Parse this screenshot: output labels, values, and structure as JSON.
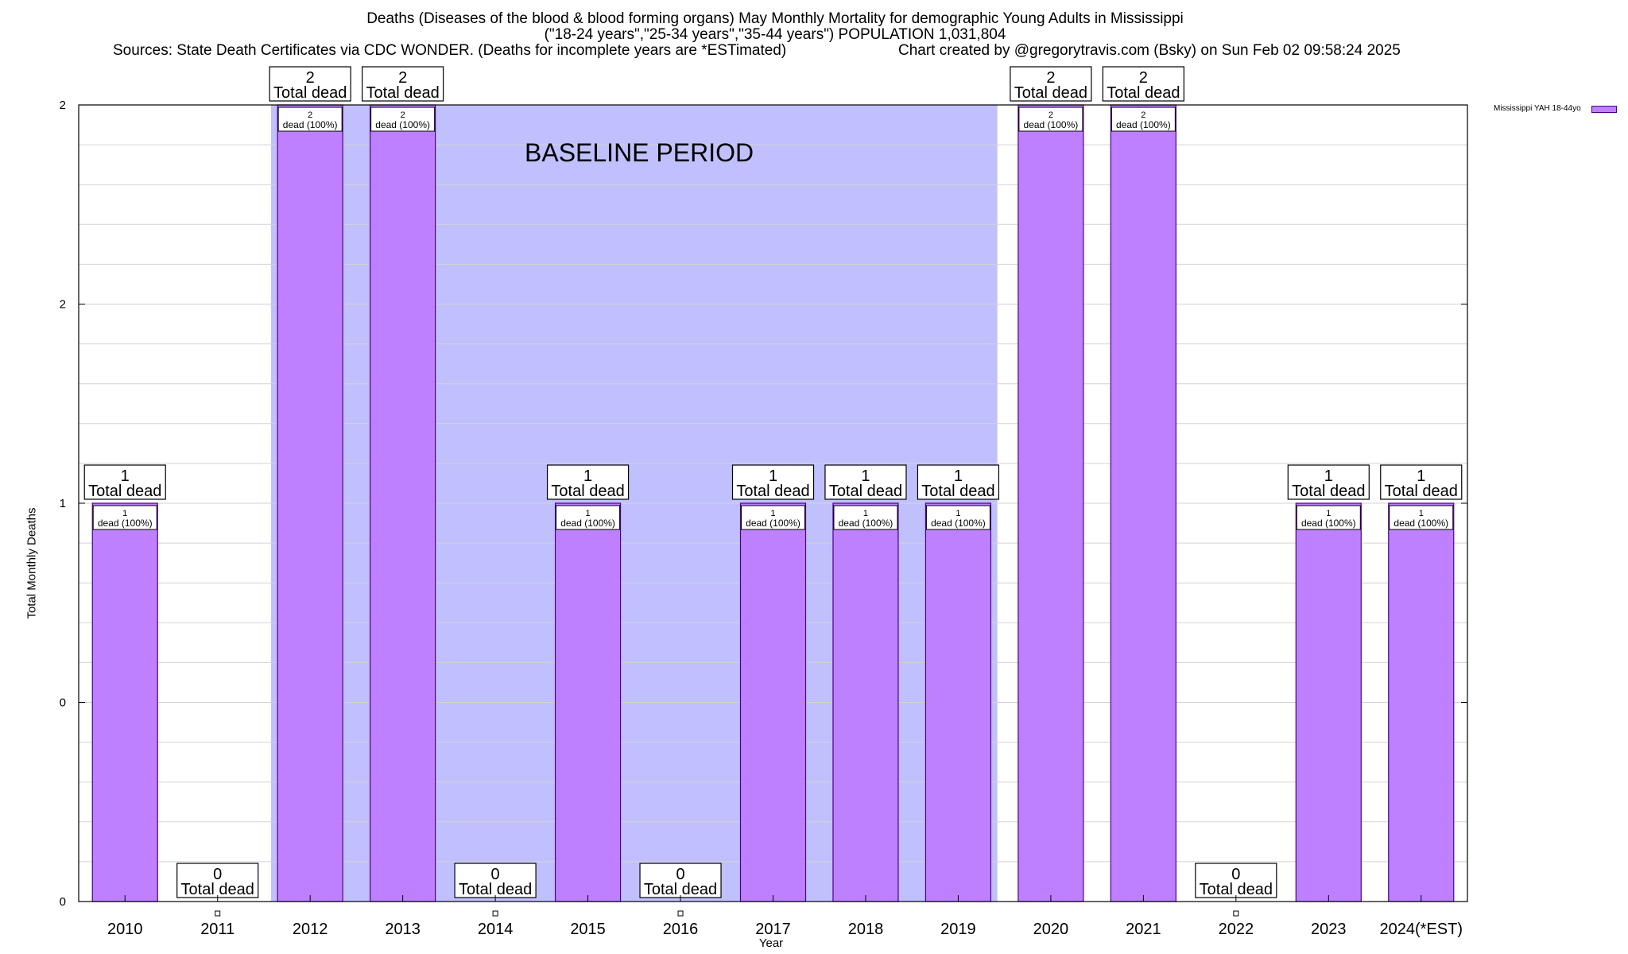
{
  "header": {
    "title_line1": "Deaths (Diseases of the blood & blood forming organs) May Monthly Mortality for demographic Young Adults in Mississippi",
    "title_line2": "(\"18-24 years\",\"25-34 years\",\"35-44 years\") POPULATION 1,031,804",
    "sources": "Sources: State Death Certificates via CDC WONDER. (Deaths for incomplete years are *ESTimated)",
    "credit": "Chart created by @gregorytravis.com (Bsky) on Sun Feb 02 09:58:24 2025"
  },
  "legend": {
    "label": "Mississippi YAH 18-44yo",
    "color": "#bf80ff"
  },
  "annotation": "BASELINE PERIOD",
  "chart_data": {
    "type": "bar",
    "xlabel": "Year",
    "ylabel": "Total Monthly Deaths",
    "ylim": [
      0,
      2
    ],
    "y_tick_labels": [
      "0",
      "0",
      "1",
      "2",
      "2"
    ],
    "categories": [
      "2010",
      "2011",
      "2012",
      "2013",
      "2014",
      "2015",
      "2016",
      "2017",
      "2018",
      "2019",
      "2020",
      "2021",
      "2022",
      "2023",
      "2024(*EST)"
    ],
    "series": [
      {
        "name": "Mississippi YAH 18-44yo",
        "values": [
          1,
          0,
          2,
          2,
          0,
          1,
          0,
          1,
          1,
          1,
          2,
          2,
          0,
          1,
          1
        ]
      }
    ],
    "total_label_suffix": "Total dead",
    "inner_label_suffix": "dead (100%)",
    "baseline_period": {
      "from": "2012",
      "to": "2019"
    },
    "colors": {
      "bar": "#bf80ff",
      "bar_edge": "#4b0082",
      "baseline_shade": "#c0c0ff"
    },
    "grid": true
  }
}
